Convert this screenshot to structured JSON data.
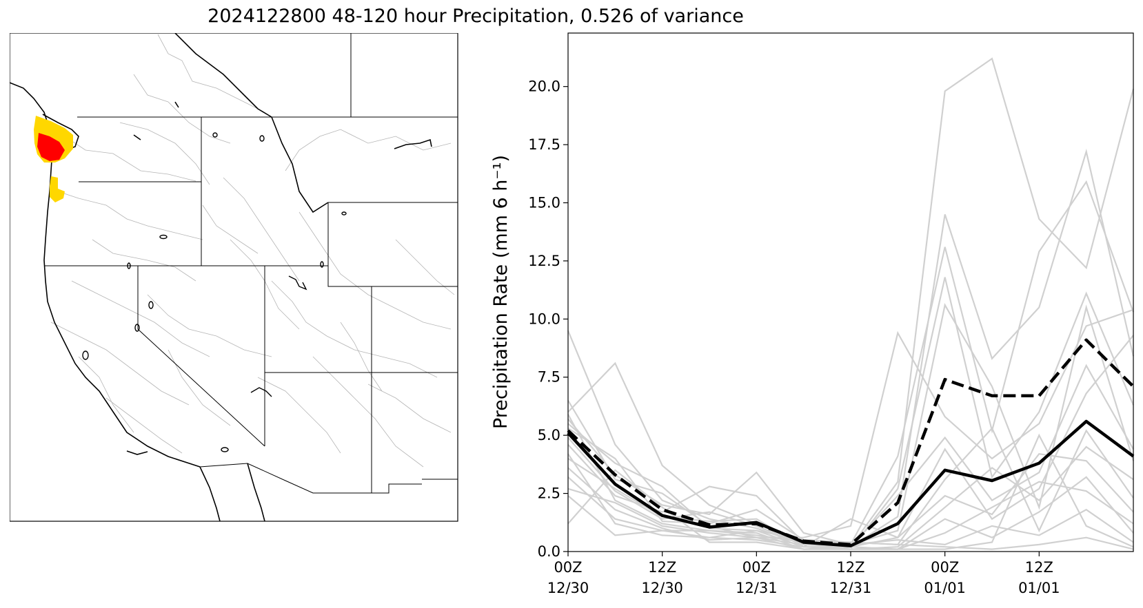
{
  "title": "2024122800 48-120 hour Precipitation, 0.526 of variance",
  "colors": {
    "member": "#d0d0d0",
    "highlight": "#000000",
    "precip_high": "#ff0000",
    "precip_mid": "#ffd700",
    "basin_lines": "#b4b4b4"
  },
  "map": {
    "region": "Western United States",
    "icon": "precipitation-map-icon"
  },
  "chart_data": {
    "type": "line",
    "title": "2024122800 48-120 hour Precipitation, 0.526 of variance",
    "xlabel": "",
    "ylabel": "Precipitation Rate (mm 6 h⁻¹)",
    "ylim": [
      0,
      22.3
    ],
    "xlim": [
      48,
      120
    ],
    "grid": false,
    "legend": "none",
    "yticks": [
      "0.0",
      "2.5",
      "5.0",
      "7.5",
      "10.0",
      "12.5",
      "15.0",
      "17.5",
      "20.0"
    ],
    "xticks": [
      {
        "x": 48,
        "line1": "00Z",
        "line2": "12/30"
      },
      {
        "x": 60,
        "line1": "12Z",
        "line2": "12/30"
      },
      {
        "x": 72,
        "line1": "00Z",
        "line2": "12/31"
      },
      {
        "x": 84,
        "line1": "12Z",
        "line2": "12/31"
      },
      {
        "x": 96,
        "line1": "00Z",
        "line2": "01/01"
      },
      {
        "x": 108,
        "line1": "12Z",
        "line2": "01/01"
      }
    ],
    "x": [
      48,
      54,
      60,
      66,
      72,
      78,
      84,
      90,
      96,
      102,
      108,
      114,
      120
    ],
    "highlight_series": [
      {
        "style": "solid",
        "values": [
          5.1,
          2.9,
          1.55,
          1.05,
          1.25,
          0.4,
          0.25,
          1.2,
          3.5,
          3.05,
          3.8,
          5.6,
          4.1
        ]
      },
      {
        "style": "dashed",
        "values": [
          5.2,
          3.3,
          1.8,
          1.15,
          1.2,
          0.45,
          0.3,
          2.1,
          7.4,
          6.7,
          6.7,
          9.1,
          7.1
        ]
      }
    ],
    "member_series": [
      [
        9.5,
        4.6,
        2.2,
        1.4,
        1.0,
        0.3,
        0.2,
        3.0,
        19.8,
        21.2,
        14.3,
        12.2,
        19.9
      ],
      [
        6.0,
        8.1,
        3.7,
        2.0,
        1.2,
        0.4,
        0.2,
        1.5,
        14.5,
        8.3,
        10.5,
        17.2,
        8.4
      ],
      [
        5.7,
        3.3,
        2.0,
        1.6,
        3.4,
        0.8,
        0.3,
        4.1,
        13.1,
        5.2,
        12.9,
        15.9,
        10.3
      ],
      [
        5.3,
        4.0,
        1.3,
        1.2,
        1.8,
        0.5,
        0.1,
        2.7,
        11.8,
        3.2,
        6.0,
        11.1,
        6.3
      ],
      [
        4.6,
        2.4,
        1.7,
        2.8,
        2.4,
        0.4,
        0.3,
        0.9,
        10.6,
        7.1,
        1.9,
        10.5,
        3.9
      ],
      [
        6.5,
        3.1,
        2.5,
        1.1,
        0.6,
        0.6,
        1.1,
        9.4,
        5.8,
        4.0,
        5.5,
        9.7,
        10.4
      ],
      [
        4.0,
        2.7,
        1.5,
        1.3,
        1.4,
        0.2,
        0.2,
        2.4,
        4.9,
        2.2,
        3.4,
        8.0,
        4.4
      ],
      [
        3.2,
        1.4,
        0.9,
        0.6,
        0.9,
        0.2,
        1.4,
        0.6,
        4.4,
        1.4,
        2.7,
        6.8,
        9.3
      ],
      [
        2.7,
        2.1,
        1.1,
        0.8,
        0.6,
        0.3,
        0.4,
        0.3,
        3.1,
        5.3,
        0.9,
        5.2,
        2.3
      ],
      [
        5.9,
        2.2,
        1.2,
        0.9,
        0.8,
        0.1,
        0.2,
        0.6,
        2.4,
        1.6,
        4.2,
        3.9,
        1.7
      ],
      [
        3.6,
        1.8,
        1.0,
        0.5,
        0.6,
        0.1,
        0.1,
        0.2,
        1.9,
        3.6,
        2.2,
        4.5,
        3.1
      ],
      [
        4.2,
        1.2,
        0.7,
        0.6,
        0.5,
        0.2,
        0.1,
        0.1,
        1.4,
        0.6,
        1.7,
        3.2,
        0.8
      ],
      [
        1.2,
        3.5,
        1.9,
        0.4,
        0.4,
        0.1,
        0.1,
        0.1,
        0.8,
        1.9,
        3.0,
        2.6,
        1.2
      ],
      [
        2.4,
        0.7,
        0.9,
        0.9,
        0.7,
        0.4,
        0.3,
        0.5,
        0.3,
        1.1,
        0.7,
        1.8,
        0.4
      ],
      [
        4.9,
        2.6,
        1.4,
        1.7,
        1.1,
        0.3,
        0.2,
        0.1,
        0.1,
        0.4,
        5.0,
        1.1,
        0.2
      ],
      [
        5.5,
        3.8,
        2.8,
        1.0,
        0.9,
        0.5,
        0.4,
        0.3,
        0.2,
        0.1,
        0.3,
        0.6,
        0.1
      ]
    ]
  }
}
